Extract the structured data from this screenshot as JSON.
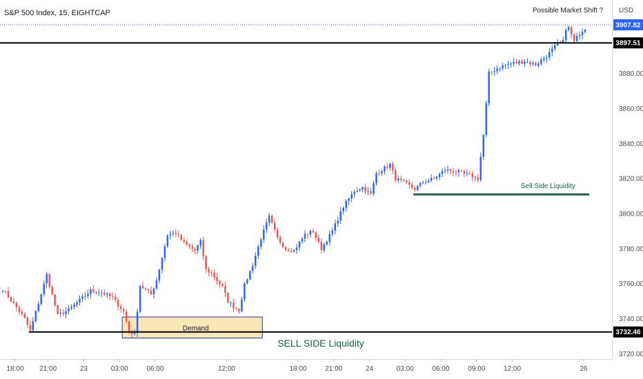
{
  "header": {
    "title": "S&P 500 Index, 15, EIGHTCAP"
  },
  "price_axis": {
    "currency": "USD"
  },
  "colors": {
    "up": "#2962ff",
    "down": "#ef5350",
    "level": "#000000",
    "liquidity_green": "#1b5e4b",
    "demand_fill": "#fbe7b5",
    "demand_border": "#1e3a8a",
    "current_price_tag": "#2962ff"
  },
  "chart_data": {
    "type": "candlestick",
    "title": "S&P 500 Index, 15, EIGHTCAP",
    "ylabel": "USD",
    "ylim": [
      3717,
      3922
    ],
    "y_ticks": [
      3720,
      3740,
      3760,
      3780,
      3800,
      3820,
      3840,
      3860,
      3880
    ],
    "x_ticks": [
      "18:00",
      "21:00",
      "23",
      "03:00",
      "06:00",
      "12:00",
      "18:00",
      "21:00",
      "24",
      "03:00",
      "06:00",
      "09:00",
      "12:00",
      "26"
    ],
    "bar_count": 216,
    "x_tick_positions": [
      5,
      17,
      30,
      43,
      56,
      82,
      108,
      121,
      134,
      147,
      160,
      173,
      186,
      212
    ],
    "anchors": [
      [
        0,
        3757
      ],
      [
        8,
        3740
      ],
      [
        10,
        3733
      ],
      [
        16,
        3765
      ],
      [
        20,
        3742
      ],
      [
        24,
        3745
      ],
      [
        32,
        3756
      ],
      [
        36,
        3755
      ],
      [
        40,
        3752
      ],
      [
        44,
        3744
      ],
      [
        46,
        3733
      ],
      [
        48,
        3731
      ],
      [
        50,
        3759
      ],
      [
        54,
        3754
      ],
      [
        56,
        3762
      ],
      [
        60,
        3788
      ],
      [
        63,
        3789
      ],
      [
        66,
        3783
      ],
      [
        70,
        3779
      ],
      [
        72,
        3784
      ],
      [
        74,
        3768
      ],
      [
        76,
        3766
      ],
      [
        80,
        3758
      ],
      [
        82,
        3750
      ],
      [
        84,
        3747
      ],
      [
        86,
        3745
      ],
      [
        88,
        3759
      ],
      [
        91,
        3771
      ],
      [
        94,
        3786
      ],
      [
        97,
        3798
      ],
      [
        100,
        3786
      ],
      [
        103,
        3780
      ],
      [
        106,
        3779
      ],
      [
        110,
        3788
      ],
      [
        113,
        3790
      ],
      [
        115,
        3783
      ],
      [
        116,
        3780
      ],
      [
        120,
        3790
      ],
      [
        124,
        3804
      ],
      [
        128,
        3813
      ],
      [
        131,
        3815
      ],
      [
        134,
        3811
      ],
      [
        136,
        3823
      ],
      [
        138,
        3825
      ],
      [
        141,
        3828
      ],
      [
        143,
        3820
      ],
      [
        147,
        3817
      ],
      [
        150,
        3814
      ],
      [
        153,
        3818
      ],
      [
        157,
        3820
      ],
      [
        161,
        3825
      ],
      [
        165,
        3824
      ],
      [
        170,
        3822
      ],
      [
        173,
        3820
      ],
      [
        175,
        3845
      ],
      [
        177,
        3880
      ],
      [
        180,
        3883
      ],
      [
        183,
        3885
      ],
      [
        186,
        3886
      ],
      [
        190,
        3887
      ],
      [
        194,
        3885
      ],
      [
        198,
        3890
      ],
      [
        202,
        3897
      ],
      [
        204,
        3898
      ],
      [
        205,
        3906
      ],
      [
        206,
        3906
      ],
      [
        208,
        3898
      ],
      [
        210,
        3903
      ],
      [
        212,
        3906
      ]
    ],
    "levels": [
      {
        "name": "upper-level",
        "price": 3897.51,
        "label": "3897.51",
        "style": "solid"
      },
      {
        "name": "lower-level",
        "price": 3732.46,
        "label": "3732.46",
        "style": "solid"
      },
      {
        "name": "current-price",
        "price": 3907.82,
        "label": "3907.82",
        "style": "dotted"
      }
    ]
  },
  "annotations": {
    "possible_market_shift": "Possible Market Shift ?",
    "sell_side_liquidity_upper": "Sell Side Liquidity",
    "sell_side_liquidity_lower": "SELL SIDE Liquidity",
    "demand": "Demand"
  }
}
